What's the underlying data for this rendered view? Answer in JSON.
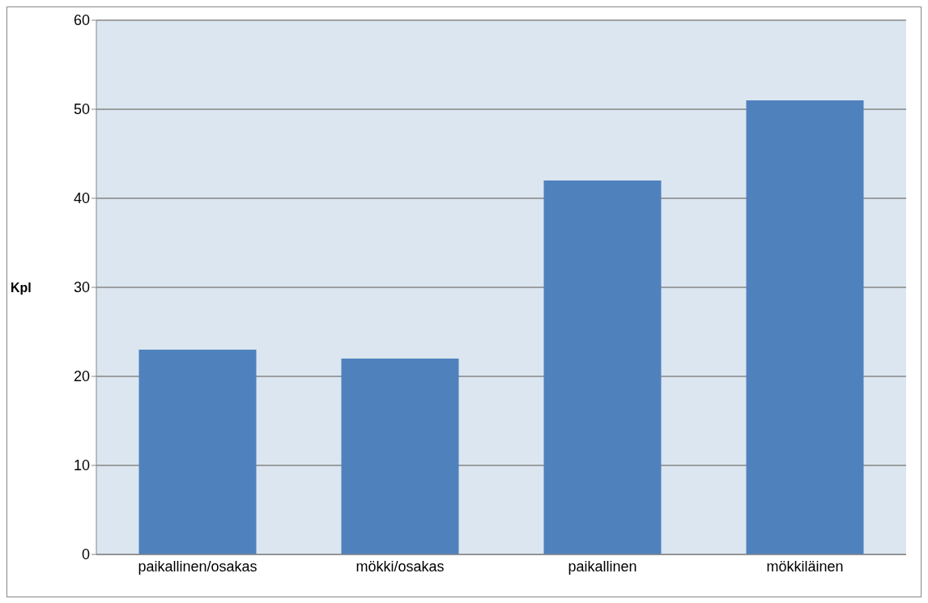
{
  "chart_data": {
    "type": "bar",
    "ylabel": "Kpl",
    "categories": [
      "paikallinen/osakas",
      "mökki/osakas",
      "paikallinen",
      "mökkiläinen"
    ],
    "values": [
      23,
      22,
      42,
      51
    ],
    "color": "#4f81bd",
    "ylim": [
      0,
      60
    ],
    "yticks": [
      0,
      10,
      20,
      30,
      40,
      50,
      60
    ],
    "grid": "y",
    "legend": false
  }
}
